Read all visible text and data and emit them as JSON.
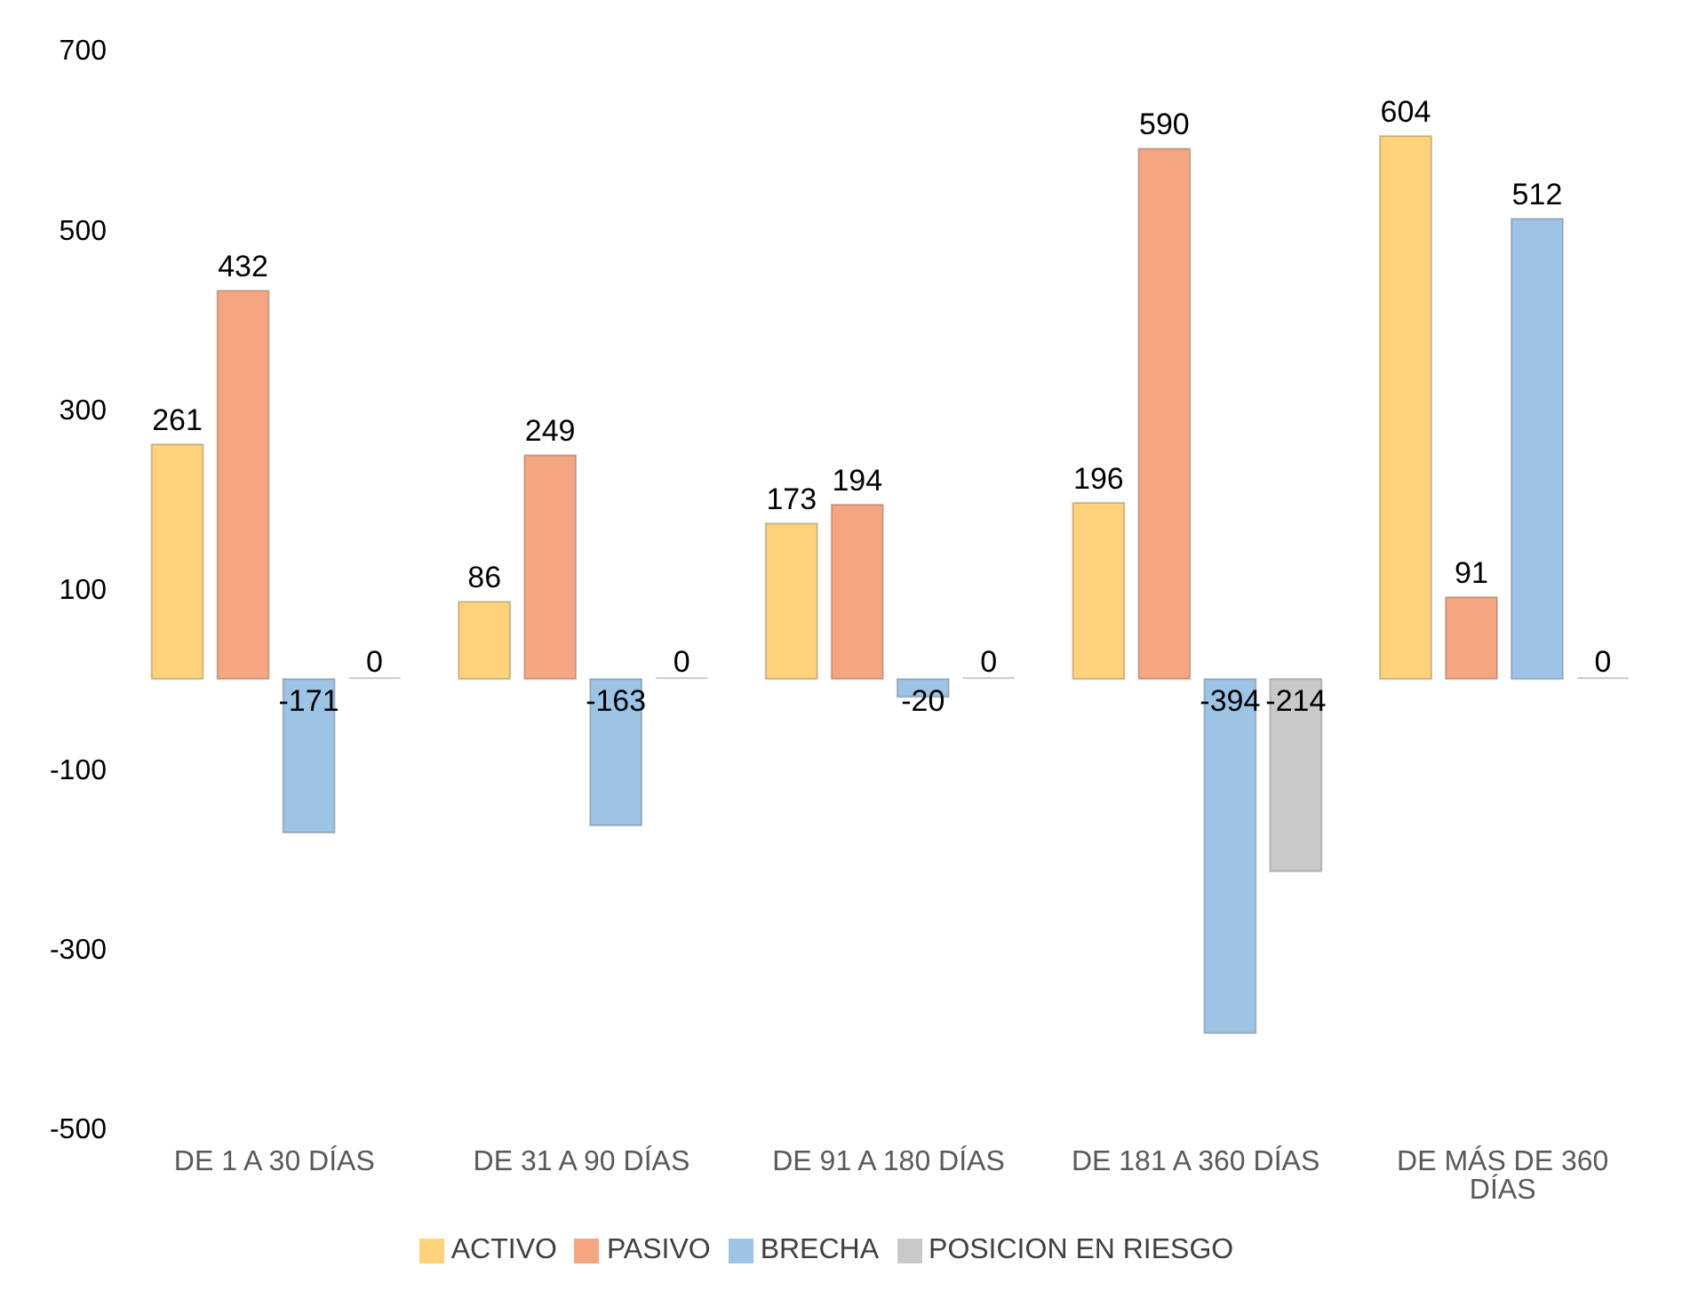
{
  "chart_data": {
    "type": "bar",
    "categories": [
      "DE 1 A 30 DÍAS",
      "DE 31 A 90 DÍAS",
      "DE 91 A 180 DÍAS",
      "DE 181 A 360 DÍAS",
      "DE MÁS DE 360 DÍAS"
    ],
    "series": [
      {
        "name": "ACTIVO",
        "color": "#fdd27a",
        "values": [
          261,
          86,
          173,
          196,
          604
        ]
      },
      {
        "name": "PASIVO",
        "color": "#f4a582",
        "values": [
          432,
          249,
          194,
          590,
          91
        ]
      },
      {
        "name": "BRECHA",
        "color": "#9dc3e6",
        "values": [
          -171,
          -163,
          -20,
          -394,
          512
        ]
      },
      {
        "name": "POSICION EN RIESGO",
        "color": "#c9c9c9",
        "values": [
          0,
          0,
          0,
          -214,
          0
        ]
      }
    ],
    "ylim": [
      -500,
      700
    ],
    "yticks": [
      -500,
      -300,
      -100,
      100,
      300,
      500,
      700
    ],
    "data_labels": true,
    "legend": "bottom",
    "grid": false
  }
}
